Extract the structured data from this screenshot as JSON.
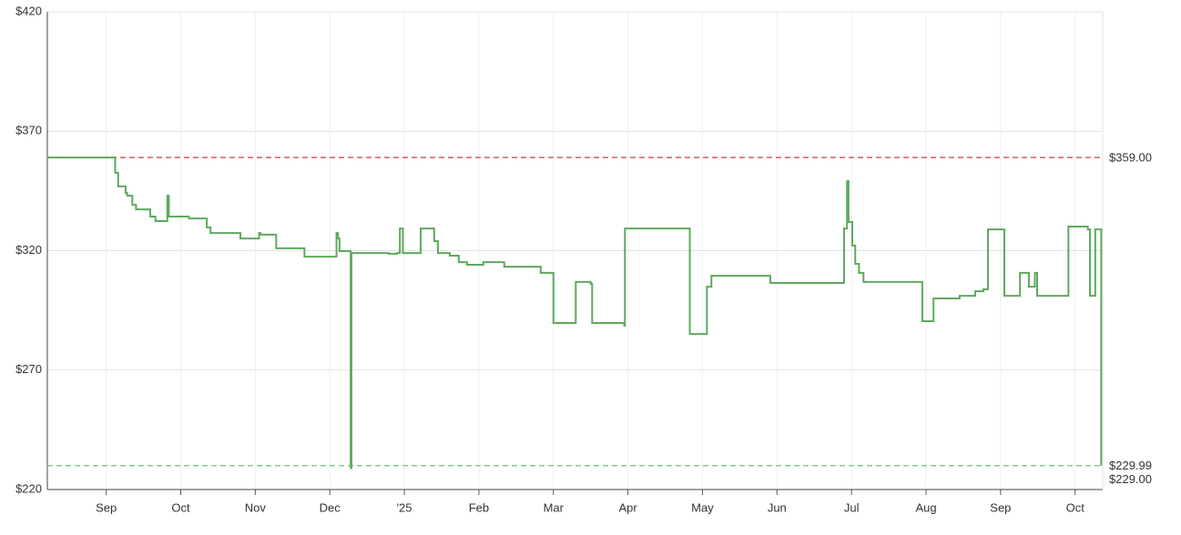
{
  "chart_data": {
    "type": "step-line",
    "x": [
      8.21,
      9.12,
      9.16,
      9.26,
      9.28,
      9.35,
      9.4,
      9.59,
      9.66,
      9.82,
      9.84,
      10.11,
      10.35,
      10.4,
      10.8,
      11.05,
      11.07,
      11.28,
      11.66,
      12.09,
      12.11,
      12.13,
      12.28,
      12.29,
      12.79,
      12.9,
      12.94,
      12.98,
      13.22,
      13.4,
      13.45,
      13.61,
      13.73,
      13.84,
      14.06,
      14.34,
      14.83,
      15.0,
      15.3,
      15.5,
      15.52,
      15.95,
      15.96,
      16.83,
      17.06,
      17.12,
      17.91,
      18.7,
      18.9,
      18.94,
      18.96,
      19.01,
      19.05,
      19.1,
      19.16,
      19.95,
      20.1,
      20.45,
      20.66,
      20.77,
      20.83,
      21.05,
      21.26,
      21.38,
      21.46,
      21.49,
      21.91,
      22.17,
      22.2,
      22.27,
      22.35
    ],
    "series": [
      {
        "color": "#5ea95e",
        "values": [
          359,
          352.6,
          346.9,
          344.2,
          343.0,
          339.2,
          337.3,
          334.3,
          332.4,
          343.0,
          334.3,
          333.5,
          329.7,
          327.4,
          325.1,
          327.4,
          326.7,
          321.0,
          317.5,
          327.4,
          325.1,
          319.8,
          229,
          319.0,
          318.7,
          319.0,
          329.3,
          319.0,
          329.3,
          324.0,
          319.0,
          317.9,
          315.2,
          314.1,
          315.2,
          313.3,
          310.7,
          289.7,
          306.9,
          306.1,
          289.7,
          288.6,
          329.3,
          285.1,
          304.9,
          309.5,
          306.5,
          306.5,
          329.3,
          349.1,
          332.0,
          322.1,
          314.5,
          310.7,
          306.9,
          290.5,
          300.0,
          301.1,
          303.0,
          303.8,
          328.9,
          301.1,
          310.7,
          304.9,
          310.7,
          301.1,
          330.1,
          328.9,
          301.1,
          328.9,
          229.99
        ]
      }
    ],
    "xlim": [
      8.21,
      22.37
    ],
    "xticks": [
      {
        "value": 9,
        "label": "Sep"
      },
      {
        "value": 10,
        "label": "Oct"
      },
      {
        "value": 11,
        "label": "Nov"
      },
      {
        "value": 12,
        "label": "Dec"
      },
      {
        "value": 13,
        "label": "'25"
      },
      {
        "value": 14,
        "label": "Feb"
      },
      {
        "value": 15,
        "label": "Mar"
      },
      {
        "value": 16,
        "label": "Apr"
      },
      {
        "value": 17,
        "label": "May"
      },
      {
        "value": 18,
        "label": "Jun"
      },
      {
        "value": 19,
        "label": "Jul"
      },
      {
        "value": 20,
        "label": "Aug"
      },
      {
        "value": 21,
        "label": "Sep"
      },
      {
        "value": 22,
        "label": "Oct"
      }
    ],
    "ylim": [
      220,
      420
    ],
    "yticks": [
      {
        "value": 220,
        "label": "$220"
      },
      {
        "value": 270,
        "label": "$270"
      },
      {
        "value": 320,
        "label": "$320"
      },
      {
        "value": 370,
        "label": "$370"
      },
      {
        "value": 420,
        "label": "$420"
      }
    ],
    "grid": true,
    "reference_lines": [
      {
        "value": 359,
        "label": "$359.00",
        "color": "#cf5f5c"
      },
      {
        "value": 229.99,
        "label": "$229.99",
        "color": "#86cc86"
      }
    ],
    "annotations": [
      {
        "value": 229,
        "label": "$229.00",
        "color": "#86cc86"
      }
    ]
  }
}
